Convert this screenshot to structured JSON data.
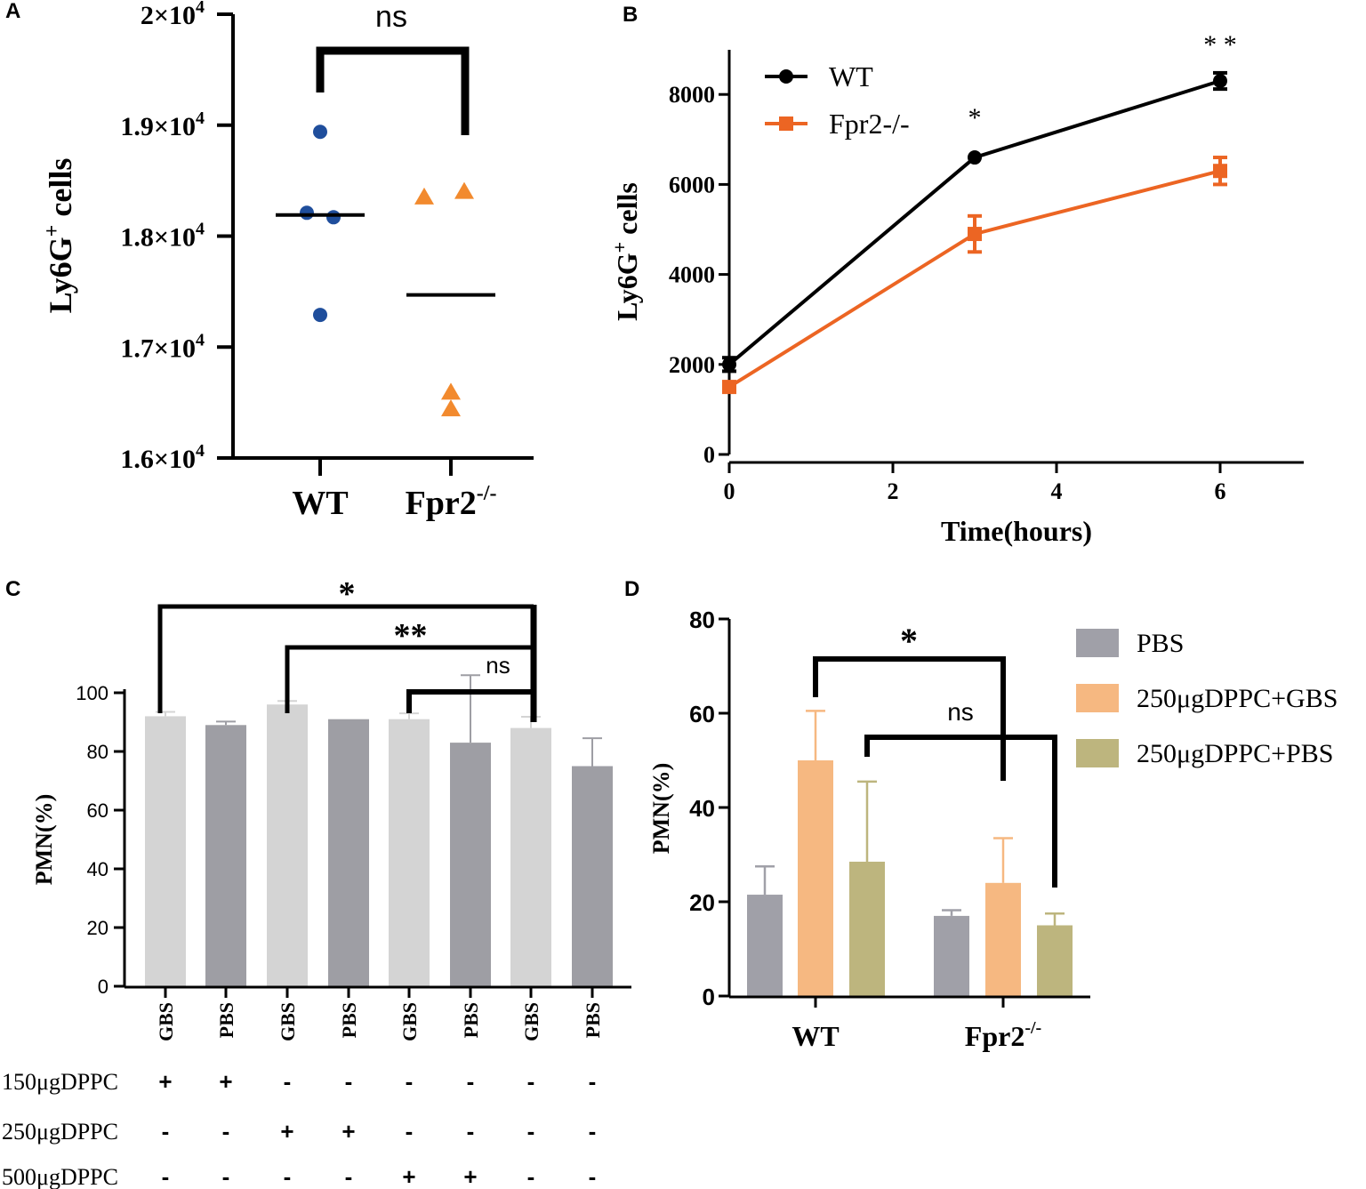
{
  "colors": {
    "wt": "#1f4e9c",
    "ko": "#f28a2e",
    "b_wt": "#000000",
    "b_ko": "#ec6523",
    "c_light": "#d4d4d4",
    "c_dark": "#9e9ea4",
    "d_pbs": "#a0a0a8",
    "d_gbs": "#f6b881",
    "d_dppc_pbs": "#bdb57e"
  },
  "chart_data": [
    {
      "panel": "A",
      "type": "scatter",
      "ylabel_base": "Ly6G",
      "ylabel_sup": "+",
      "ylabel_tail": " cells",
      "ylim": [
        16000,
        20000
      ],
      "yticks": [
        {
          "value": 16000,
          "base": "1.6×10",
          "exp": "4"
        },
        {
          "value": 17000,
          "base": "1.7×10",
          "exp": "4"
        },
        {
          "value": 18000,
          "base": "1.8×10",
          "exp": "4"
        },
        {
          "value": 19000,
          "base": "1.9×10",
          "exp": "4"
        },
        {
          "value": 20000,
          "base": "2×10",
          "exp": "4"
        }
      ],
      "groups": [
        {
          "label": "WT",
          "label_sup": "",
          "marker": "circle",
          "points": [
            18940,
            18210,
            18170,
            17290
          ],
          "mean": 18190
        },
        {
          "label": "Fpr2",
          "label_sup": "-/-",
          "marker": "triangle",
          "points": [
            18350,
            18400,
            16590,
            16440
          ],
          "mean": 17470
        }
      ],
      "significance": [
        {
          "text": "ns"
        }
      ]
    },
    {
      "panel": "B",
      "type": "line",
      "xlabel": "Time(hours)",
      "ylabel_base": "Ly6G",
      "ylabel_sup": "+",
      "ylabel_tail": " cells",
      "xlim": [
        0,
        7
      ],
      "ylim": [
        0,
        9000
      ],
      "xticks": [
        0,
        2,
        4,
        6
      ],
      "yticks": [
        0,
        2000,
        4000,
        6000,
        8000
      ],
      "x": [
        0,
        3,
        6
      ],
      "series": [
        {
          "name": "WT",
          "values": [
            2000,
            6600,
            8300
          ],
          "errors": [
            150,
            0,
            180
          ],
          "marker": "circle"
        },
        {
          "name": "Fpr2-/-",
          "values": [
            1500,
            4900,
            6300
          ],
          "errors": [
            0,
            400,
            300
          ],
          "marker": "square"
        }
      ],
      "annotations": [
        {
          "x": 3,
          "text": "*"
        },
        {
          "x": 6,
          "text": "* *"
        }
      ]
    },
    {
      "panel": "C",
      "type": "bar",
      "ylabel": "PMN(%)",
      "ylim": [
        0,
        100
      ],
      "yticks": [
        0,
        20,
        40,
        60,
        80,
        100
      ],
      "categories": [
        "GBS",
        "PBS",
        "GBS",
        "PBS",
        "GBS",
        "PBS",
        "GBS",
        "PBS"
      ],
      "values": [
        92,
        89,
        96,
        91,
        91,
        83,
        88,
        75
      ],
      "errors": [
        1.5,
        1.2,
        1.2,
        0,
        2,
        23,
        3.8,
        9.5
      ],
      "conditions": [
        {
          "label": "150μgDPPC",
          "marks": [
            "+",
            "+",
            "-",
            "-",
            "-",
            "-",
            "-",
            "-"
          ]
        },
        {
          "label": "250μgDPPC",
          "marks": [
            "-",
            "-",
            "+",
            "+",
            "-",
            "-",
            "-",
            "-"
          ]
        },
        {
          "label": "500μgDPPC",
          "marks": [
            "-",
            "-",
            "-",
            "-",
            "+",
            "+",
            "-",
            "-"
          ]
        }
      ],
      "significance": [
        {
          "from": 0,
          "to": 6,
          "text": "*"
        },
        {
          "from": 2,
          "to": 6,
          "text": "**"
        },
        {
          "from": 4,
          "to": 6,
          "text": "ns"
        }
      ]
    },
    {
      "panel": "D",
      "type": "bar",
      "ylabel": "PMN(%)",
      "ylim": [
        0,
        80
      ],
      "yticks": [
        0,
        20,
        40,
        60,
        80
      ],
      "groups": [
        {
          "label": "WT",
          "label_sup": ""
        },
        {
          "label": "Fpr2",
          "label_sup": "-/-"
        }
      ],
      "series": [
        {
          "name": "PBS",
          "values": [
            21.5,
            17
          ],
          "errors": [
            6,
            1.2
          ]
        },
        {
          "name": "250μgDPPC+GBS",
          "values": [
            50,
            24
          ],
          "errors": [
            10.5,
            9.5
          ]
        },
        {
          "name": "250μgDPPC+PBS",
          "values": [
            28.5,
            15
          ],
          "errors": [
            17,
            2.5
          ]
        }
      ],
      "significance": [
        {
          "text": "*",
          "series": 1
        },
        {
          "text": "ns",
          "series": 2
        }
      ]
    }
  ]
}
